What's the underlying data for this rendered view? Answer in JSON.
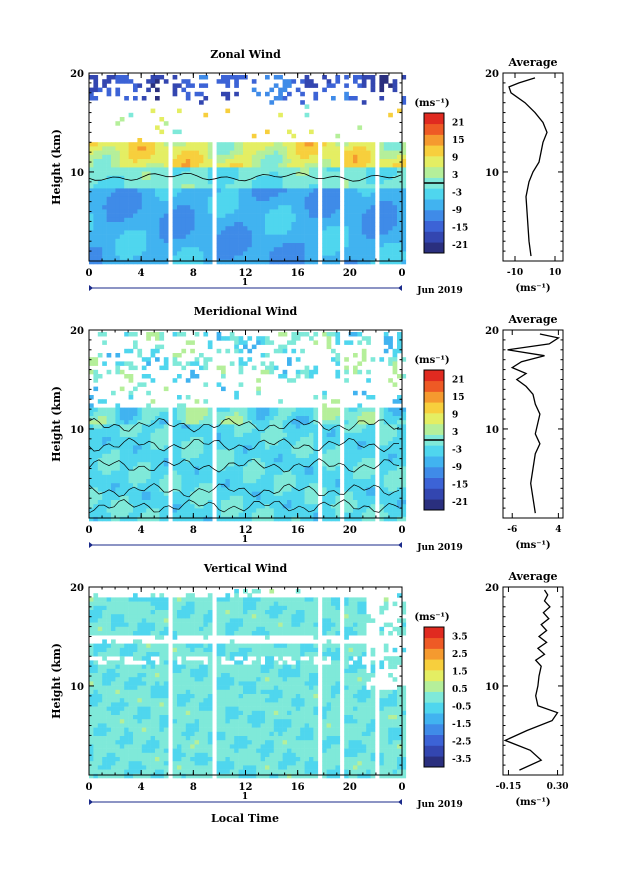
{
  "colors": {
    "palette": [
      "#2a2f7e",
      "#3346b0",
      "#3c63d6",
      "#3f8be8",
      "#41b3f0",
      "#4fd6ee",
      "#7fe9d9",
      "#b5ef9a",
      "#e4ee63",
      "#f7cf3d",
      "#f59a2f",
      "#ee5a25",
      "#e02a20"
    ]
  },
  "common": {
    "ylabel": "Height (km)",
    "date_label": "Jun 2019",
    "day_label": "1",
    "units_label": "(ms⁻¹)",
    "average_title": "Average",
    "xlabel_bottom": "Local Time"
  },
  "chart_data": [
    {
      "type": "heatmap",
      "title": "Zonal Wind",
      "xlabel": "",
      "ylabel": "Height (km)",
      "x_ticks": [
        "0",
        "4",
        "8",
        "12",
        "16",
        "20",
        "0"
      ],
      "xlim": [
        0,
        24
      ],
      "y_ticks": [
        "20",
        "10"
      ],
      "ylim": [
        1,
        20
      ],
      "colorbar": {
        "ticks": [
          "21",
          "15",
          "9",
          "3",
          "-3",
          "-9",
          "-15",
          "-21"
        ],
        "range": [
          -24,
          24
        ],
        "zero_line": true
      },
      "contour": "zero-wind contour near 9.5 km",
      "profile": {
        "title": "Average",
        "x_ticks": [
          "-10",
          "10"
        ],
        "xlim": [
          -16,
          14
        ],
        "height": [
          1.5,
          3,
          4.5,
          6,
          7.5,
          9,
          10,
          11,
          12,
          13,
          14,
          15,
          16,
          17,
          18,
          18.6,
          19,
          19.5
        ],
        "value": [
          -2,
          -3,
          -3.5,
          -4,
          -4.5,
          -3,
          -1,
          2,
          3,
          4,
          6,
          4,
          0,
          -5,
          -12,
          -13,
          -8,
          0
        ]
      }
    },
    {
      "type": "heatmap",
      "title": "Meridional Wind",
      "xlabel": "",
      "ylabel": "Height (km)",
      "x_ticks": [
        "0",
        "4",
        "8",
        "12",
        "16",
        "20",
        "0"
      ],
      "xlim": [
        0,
        24
      ],
      "y_ticks": [
        "20",
        "10"
      ],
      "ylim": [
        1,
        20
      ],
      "colorbar": {
        "ticks": [
          "21",
          "15",
          "9",
          "3",
          "-3",
          "-9",
          "-15",
          "-21"
        ],
        "range": [
          -24,
          24
        ],
        "zero_line": true
      },
      "contour": "zero-wind contours",
      "profile": {
        "title": "Average",
        "x_ticks": [
          "-6",
          "4"
        ],
        "xlim": [
          -8,
          5
        ],
        "height": [
          1.5,
          3,
          4.5,
          6,
          7.5,
          8.5,
          9.5,
          10.5,
          11.5,
          12.5,
          13.5,
          14.3,
          15,
          15.6,
          16.2,
          16.8,
          17.4,
          18,
          18.6,
          19.2,
          19.6
        ],
        "value": [
          -1,
          -1.5,
          -2,
          -1.5,
          -1,
          0,
          -1,
          -0.5,
          0,
          -1,
          -1.5,
          -3,
          -5,
          -3,
          -6,
          -4,
          1,
          -7,
          2,
          4,
          0
        ]
      }
    },
    {
      "type": "heatmap",
      "title": "Vertical Wind",
      "xlabel": "Local Time",
      "ylabel": "Height (km)",
      "x_ticks": [
        "0",
        "4",
        "8",
        "12",
        "16",
        "20",
        "0"
      ],
      "xlim": [
        0,
        24
      ],
      "y_ticks": [
        "20",
        "10"
      ],
      "ylim": [
        1,
        20
      ],
      "colorbar": {
        "ticks": [
          "3.5",
          "2.5",
          "1.5",
          "0.5",
          "-0.5",
          "-1.5",
          "-2.5",
          "-3.5"
        ],
        "range": [
          -4,
          4
        ],
        "zero_line": false
      },
      "profile": {
        "title": "Average",
        "x_ticks": [
          "-0.15",
          "0.30"
        ],
        "xlim": [
          -0.2,
          0.35
        ],
        "height": [
          1.5,
          2.5,
          3.5,
          4.5,
          5.5,
          6.5,
          7.3,
          8,
          9,
          10,
          11,
          12,
          12.6,
          13.2,
          13.8,
          14.4,
          15,
          15.6,
          16.2,
          16.8,
          17.4,
          18,
          18.6,
          19.2,
          19.7
        ],
        "value": [
          -0.05,
          0.15,
          0.05,
          -0.18,
          0.02,
          0.25,
          0.3,
          0.12,
          0.1,
          0.12,
          0.13,
          0.15,
          0.1,
          0.18,
          0.12,
          0.2,
          0.13,
          0.2,
          0.15,
          0.22,
          0.17,
          0.23,
          0.18,
          0.21,
          0.18
        ]
      }
    }
  ]
}
